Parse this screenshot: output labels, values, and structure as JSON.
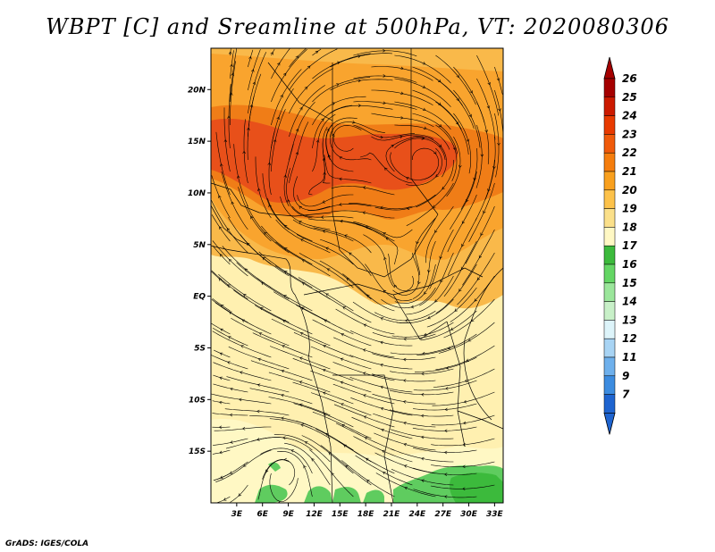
{
  "title": "WBPT [C] and Sreamline at 500hPa, VT: 2020080306",
  "credit": "GrADS: IGES/COLA",
  "map": {
    "lon_range": [
      0,
      34
    ],
    "lat_range": [
      -20,
      24
    ],
    "lon_ticks": [
      "3E",
      "6E",
      "9E",
      "12E",
      "15E",
      "18E",
      "21E",
      "24E",
      "27E",
      "30E",
      "33E"
    ],
    "lat_ticks": [
      "20N",
      "15N",
      "10N",
      "5N",
      "EQ",
      "5S",
      "10S",
      "15S"
    ],
    "fields": [
      "wet-bulb potential temperature",
      "500hPa streamlines"
    ]
  },
  "colorbar": {
    "labels": [
      "26",
      "25",
      "24",
      "23",
      "22",
      "21",
      "20",
      "19",
      "18",
      "17",
      "16",
      "15",
      "14",
      "13",
      "12",
      "11",
      "9",
      "7"
    ],
    "colors": [
      "#a50000",
      "#cc1a00",
      "#e83a00",
      "#f05a0a",
      "#f57d0d",
      "#f9a01e",
      "#fdc24a",
      "#fbe08a",
      "#fff8c4",
      "#3cba3c",
      "#64d664",
      "#9be69b",
      "#c8f0c8",
      "#ddf4fa",
      "#a8d4f4",
      "#6eb0ec",
      "#3c8ce0",
      "#1e64d0"
    ]
  }
}
